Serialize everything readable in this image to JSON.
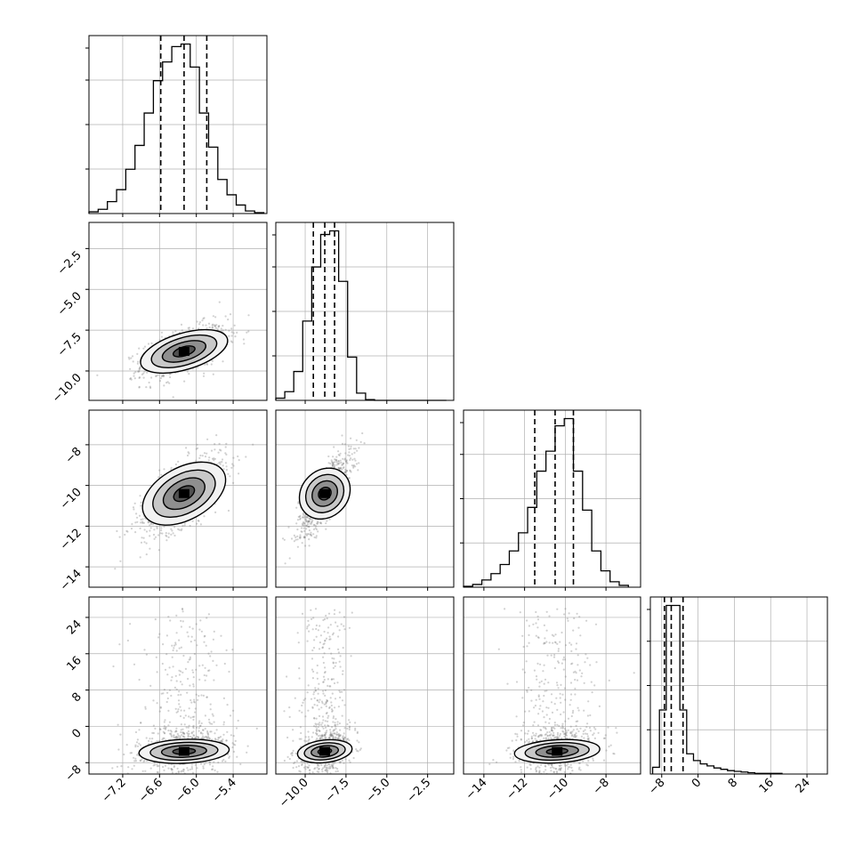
{
  "chart_data": {
    "type": "corner",
    "parameters": [
      {
        "label": "",
        "range": [
          -7.75,
          -4.85
        ],
        "ticks": [
          "−7.2",
          "−6.6",
          "−6.0",
          "−5.4"
        ],
        "tick_values": [
          -7.2,
          -6.6,
          -6.0,
          -5.4
        ]
      },
      {
        "label": "",
        "range": [
          -11.8,
          -0.9
        ],
        "ticks": [
          "−10.0",
          "−7.5",
          "−5.0",
          "−2.5"
        ],
        "tick_values": [
          -10.0,
          -7.5,
          -5.0,
          -2.5
        ]
      },
      {
        "label": "",
        "range": [
          -15.0,
          -6.3
        ],
        "ticks": [
          "−14",
          "−12",
          "−10",
          "−8"
        ],
        "tick_values": [
          -14,
          -12,
          -10,
          -8
        ]
      },
      {
        "label": "",
        "range": [
          -10.5,
          28.5
        ],
        "ticks": [
          "−8",
          "0",
          "8",
          "16",
          "24"
        ],
        "tick_values": [
          -8,
          0,
          8,
          16,
          24
        ]
      }
    ],
    "y_tick_labels": {
      "row_1": [
        "−10.0",
        "−7.5",
        "−5.0",
        "−2.5"
      ],
      "row_2": [
        "−14",
        "−12",
        "−10",
        "−8"
      ],
      "row_3": [
        "−8",
        "0",
        "8",
        "16",
        "24"
      ]
    },
    "diagonal_histograms": [
      {
        "parameter_index": 0,
        "bin_edges": [
          -7.75,
          -7.6,
          -7.45,
          -7.3,
          -7.15,
          -7.0,
          -6.85,
          -6.7,
          -6.55,
          -6.4,
          -6.25,
          -6.1,
          -5.95,
          -5.8,
          -5.65,
          -5.5,
          -5.35,
          -5.2,
          -5.05,
          -4.9
        ],
        "counts": [
          2,
          5,
          14,
          28,
          52,
          80,
          118,
          156,
          178,
          196,
          199,
          172,
          118,
          78,
          40,
          22,
          10,
          3,
          1
        ],
        "quantiles_16_50_84": [
          -6.58,
          -6.2,
          -5.83
        ]
      },
      {
        "parameter_index": 1,
        "bin_edges": [
          -11.8,
          -11.25,
          -10.7,
          -10.15,
          -9.6,
          -9.05,
          -8.5,
          -7.95,
          -7.4,
          -6.85,
          -6.3,
          -5.75,
          -5.2,
          -4.65,
          -4.1,
          -3.55,
          -2.99,
          -2.45,
          -1.9,
          -1.35
        ],
        "counts": [
          3,
          12,
          40,
          110,
          185,
          230,
          235,
          165,
          60,
          10,
          1,
          0,
          0,
          0,
          0,
          0,
          0,
          0,
          0
        ],
        "quantiles_16_50_84": [
          -9.5,
          -8.8,
          -8.2
        ]
      },
      {
        "parameter_index": 2,
        "bin_edges": [
          -15.0,
          -14.55,
          -14.1,
          -13.65,
          -13.2,
          -12.75,
          -12.3,
          -11.85,
          -11.4,
          -10.95,
          -10.5,
          -10.05,
          -9.6,
          -9.15,
          -8.7,
          -8.25,
          -7.8,
          -7.35,
          -6.9
        ],
        "counts": [
          1,
          3,
          8,
          15,
          25,
          40,
          60,
          88,
          128,
          150,
          178,
          186,
          128,
          85,
          40,
          18,
          6,
          2
        ],
        "quantiles_16_50_84": [
          -11.5,
          -10.5,
          -9.6
        ]
      },
      {
        "parameter_index": 3,
        "bin_edges": [
          -10.0,
          -8.5,
          -7.0,
          -5.5,
          -4.0,
          -2.5,
          -1.0,
          0.5,
          2.0,
          3.5,
          5.0,
          6.5,
          8.0,
          9.5,
          11.0,
          12.5,
          14.0,
          15.5,
          17.0,
          18.5
        ],
        "counts": [
          10,
          95,
          250,
          250,
          95,
          30,
          20,
          15,
          12,
          9,
          7,
          5,
          4,
          3,
          2,
          1,
          1,
          1,
          1
        ],
        "quantiles_16_50_84": [
          -7.4,
          -5.9,
          -3.3
        ]
      }
    ],
    "pair_panels": [
      {
        "x_param": 0,
        "y_param": 1,
        "mean": [
          -6.2,
          -8.8
        ],
        "sd": [
          0.35,
          0.8
        ],
        "rho": 0.55
      },
      {
        "x_param": 0,
        "y_param": 2,
        "mean": [
          -6.2,
          -10.4
        ],
        "sd": [
          0.35,
          1.0
        ],
        "rho": 0.65
      },
      {
        "x_param": 1,
        "y_param": 2,
        "mean": [
          -8.8,
          -10.4
        ],
        "sd": [
          0.8,
          1.0
        ],
        "rho": 0.78
      },
      {
        "x_param": 0,
        "y_param": 3,
        "mean": [
          -6.2,
          -5.5
        ],
        "sd": [
          0.35,
          2.6
        ],
        "rho": 0.15
      },
      {
        "x_param": 1,
        "y_param": 3,
        "mean": [
          -8.8,
          -5.5
        ],
        "sd": [
          0.8,
          2.6
        ],
        "rho": 0.25
      },
      {
        "x_param": 2,
        "y_param": 3,
        "mean": [
          -10.4,
          -5.5
        ],
        "sd": [
          1.0,
          2.6
        ],
        "rho": 0.2
      }
    ],
    "grid": true,
    "legend": "none",
    "title": "",
    "colors": {
      "hist": "#000000",
      "scatter": "#7a7a7a",
      "grid": "#b0b0b0",
      "frame": "#000000"
    }
  }
}
